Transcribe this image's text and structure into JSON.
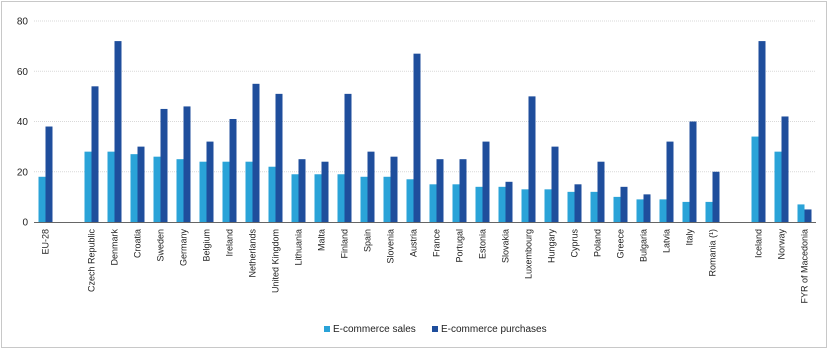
{
  "chart_data": {
    "type": "bar",
    "ylim": [
      0,
      80
    ],
    "yticks": [
      0,
      20,
      40,
      60,
      80
    ],
    "grid": true,
    "legend_position": "bottom-center",
    "colors": {
      "sales": "#2aa3d8",
      "purchases": "#1f4e9c",
      "grid": "#d9d9d9",
      "axis": "#666666"
    },
    "categories": [
      "EU-28",
      "",
      "Czech Republic",
      "Denmark",
      "Croatia",
      "Sweden",
      "Germany",
      "Belgium",
      "Ireland",
      "Netherlands",
      "United Kingdom",
      "Lithuania",
      "Malta",
      "Finland",
      "Spain",
      "Slovenia",
      "Austria",
      "France",
      "Portugal",
      "Estonia",
      "Slovakia",
      "Luxembourg",
      "Hungary",
      "Cyprus",
      "Poland",
      "Greece",
      "Bulgaria",
      "Latvia",
      "Italy",
      "Romania (¹)",
      "",
      "Iceland",
      "Norway",
      "FYR of Macedonia"
    ],
    "series": [
      {
        "name": "E-commerce sales",
        "values": [
          18,
          null,
          28,
          28,
          27,
          26,
          25,
          24,
          24,
          24,
          22,
          19,
          19,
          19,
          18,
          18,
          17,
          15,
          15,
          14,
          14,
          13,
          13,
          12,
          12,
          10,
          9,
          9,
          8,
          8,
          null,
          34,
          28,
          7
        ]
      },
      {
        "name": "E-commerce purchases",
        "values": [
          38,
          null,
          54,
          72,
          30,
          45,
          46,
          32,
          41,
          55,
          51,
          25,
          24,
          51,
          28,
          26,
          67,
          25,
          25,
          32,
          16,
          50,
          30,
          15,
          24,
          14,
          11,
          32,
          40,
          20,
          null,
          72,
          42,
          5
        ]
      }
    ]
  }
}
